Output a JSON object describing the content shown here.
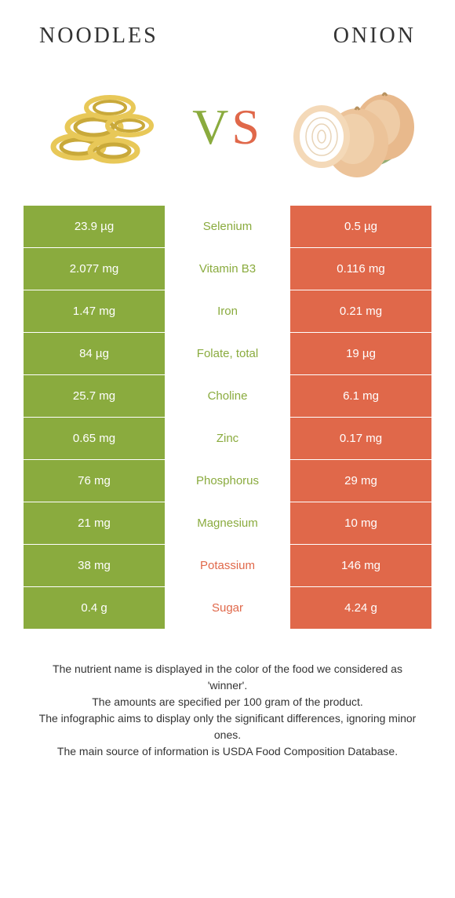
{
  "header": {
    "left_title": "Noodles",
    "right_title": "Onion"
  },
  "vs": {
    "v": "V",
    "s": "S"
  },
  "colors": {
    "left": "#8aab3e",
    "right": "#e0684a",
    "noodle": "#e8c858",
    "noodle_shadow": "#c9a93a",
    "onion_outer": "#e8b98c",
    "onion_light": "#f4d9b8",
    "onion_green": "#6a8c3a"
  },
  "table": {
    "rows": [
      {
        "left": "23.9 µg",
        "label": "Selenium",
        "right": "0.5 µg",
        "winner": "left"
      },
      {
        "left": "2.077 mg",
        "label": "Vitamin B3",
        "right": "0.116 mg",
        "winner": "left"
      },
      {
        "left": "1.47 mg",
        "label": "Iron",
        "right": "0.21 mg",
        "winner": "left"
      },
      {
        "left": "84 µg",
        "label": "Folate, total",
        "right": "19 µg",
        "winner": "left"
      },
      {
        "left": "25.7 mg",
        "label": "Choline",
        "right": "6.1 mg",
        "winner": "left"
      },
      {
        "left": "0.65 mg",
        "label": "Zinc",
        "right": "0.17 mg",
        "winner": "left"
      },
      {
        "left": "76 mg",
        "label": "Phosphorus",
        "right": "29 mg",
        "winner": "left"
      },
      {
        "left": "21 mg",
        "label": "Magnesium",
        "right": "10 mg",
        "winner": "left"
      },
      {
        "left": "38 mg",
        "label": "Potassium",
        "right": "146 mg",
        "winner": "right"
      },
      {
        "left": "0.4 g",
        "label": "Sugar",
        "right": "4.24 g",
        "winner": "right"
      }
    ]
  },
  "footer": {
    "line1": "The nutrient name is displayed in the color of the food we considered as 'winner'.",
    "line2": "The amounts are specified per 100 gram of the product.",
    "line3": "The infographic aims to display only the significant differences, ignoring minor ones.",
    "line4": "The main source of information is USDA Food Composition Database."
  }
}
